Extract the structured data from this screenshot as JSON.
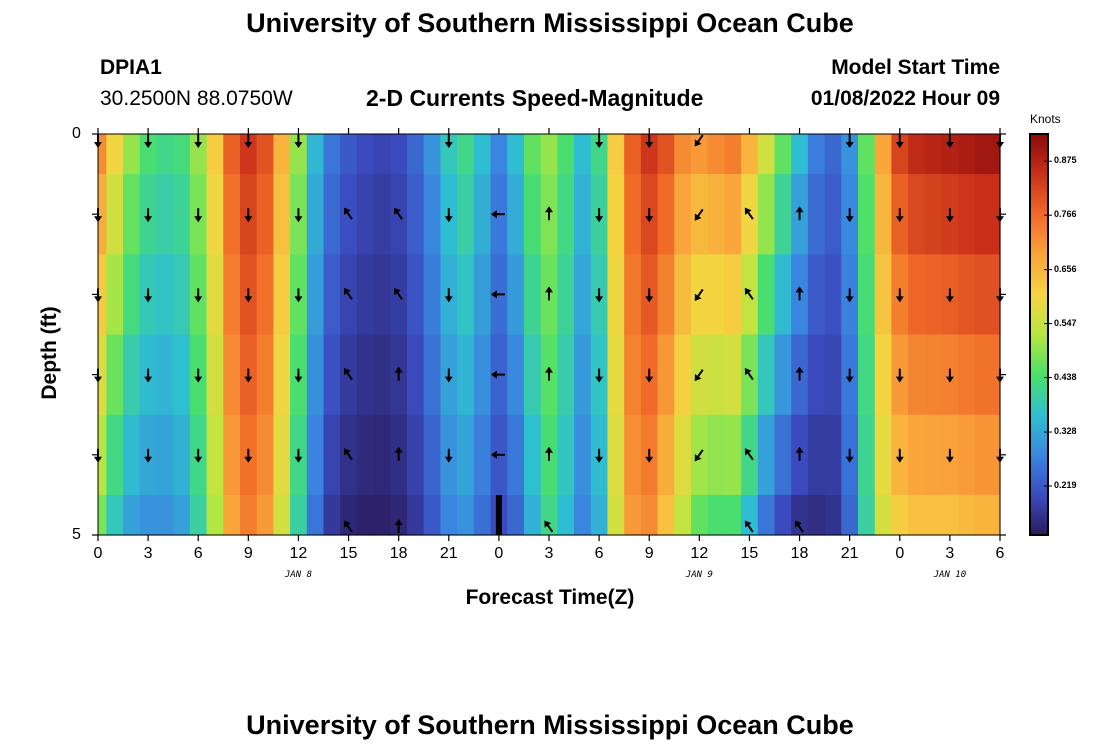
{
  "header": {
    "title": "University of Southern Mississippi Ocean Cube",
    "station_id": "DPIA1",
    "station_coords": "30.2500N  88.0750W",
    "chart_title": "2-D Currents Speed-Magnitude",
    "model_start_label": "Model Start Time",
    "model_start_value": "01/08/2022 Hour 09"
  },
  "footer": {
    "title": "University of Southern Mississippi Ocean Cube"
  },
  "colorbar": {
    "unit": "Knots",
    "ticks": [
      "0.875",
      "0.766",
      "0.656",
      "0.547",
      "0.438",
      "0.328",
      "0.219"
    ],
    "tick_values": [
      0.875,
      0.766,
      0.656,
      0.547,
      0.438,
      0.328,
      0.219
    ],
    "range": [
      0.12,
      0.93
    ],
    "colors": [
      "#2a1b5e",
      "#3b4cc0",
      "#3a86e0",
      "#2fc0d0",
      "#4ae06a",
      "#b8e640",
      "#f5d542",
      "#f9a33a",
      "#f06a28",
      "#c9301a",
      "#8a0a0a"
    ]
  },
  "chart_data": {
    "type": "heatmap",
    "title": "2-D Currents Speed-Magnitude",
    "xlabel": "Forecast Time(Z)",
    "ylabel": "Depth (ft)",
    "x_tick_labels": [
      "0",
      "3",
      "6",
      "9",
      "12",
      "15",
      "18",
      "21",
      "0",
      "3",
      "6",
      "9",
      "12",
      "15",
      "18",
      "21",
      "0",
      "3",
      "6"
    ],
    "x_hours": [
      0,
      54
    ],
    "date_labels": [
      {
        "label": "JAN 8",
        "hour": 12
      },
      {
        "label": "JAN 9",
        "hour": 36
      },
      {
        "label": "JAN 10",
        "hour": 51
      }
    ],
    "y_tick_labels": [
      "0",
      "5"
    ],
    "ylim": [
      0,
      5
    ],
    "depth_layers": 5,
    "speed_profile": {
      "hours": [
        0,
        1,
        2,
        3,
        4,
        5,
        6,
        7,
        8,
        9,
        10,
        11,
        12,
        13,
        14,
        15,
        16,
        17,
        18,
        19,
        20,
        21,
        22,
        23,
        24,
        25,
        26,
        27,
        28,
        29,
        30,
        31,
        32,
        33,
        34,
        35,
        36,
        37,
        38,
        39,
        40,
        41,
        42,
        43,
        44,
        45,
        46,
        47,
        48,
        49,
        50,
        51,
        52,
        53,
        54
      ],
      "surface": [
        0.72,
        0.6,
        0.5,
        0.44,
        0.42,
        0.43,
        0.5,
        0.62,
        0.78,
        0.84,
        0.8,
        0.66,
        0.5,
        0.35,
        0.26,
        0.22,
        0.2,
        0.19,
        0.2,
        0.24,
        0.3,
        0.38,
        0.42,
        0.36,
        0.28,
        0.36,
        0.46,
        0.5,
        0.44,
        0.36,
        0.42,
        0.62,
        0.78,
        0.84,
        0.8,
        0.72,
        0.7,
        0.72,
        0.74,
        0.66,
        0.56,
        0.46,
        0.36,
        0.27,
        0.24,
        0.3,
        0.46,
        0.68,
        0.82,
        0.86,
        0.87,
        0.88,
        0.89,
        0.9,
        0.9
      ],
      "bottom": [
        0.48,
        0.38,
        0.32,
        0.3,
        0.3,
        0.32,
        0.4,
        0.52,
        0.68,
        0.74,
        0.7,
        0.56,
        0.4,
        0.26,
        0.17,
        0.14,
        0.13,
        0.13,
        0.14,
        0.17,
        0.22,
        0.28,
        0.3,
        0.25,
        0.2,
        0.24,
        0.34,
        0.42,
        0.36,
        0.28,
        0.34,
        0.56,
        0.7,
        0.72,
        0.64,
        0.54,
        0.46,
        0.44,
        0.44,
        0.36,
        0.26,
        0.2,
        0.16,
        0.15,
        0.16,
        0.24,
        0.4,
        0.56,
        0.62,
        0.64,
        0.64,
        0.64,
        0.65,
        0.66,
        0.66
      ]
    },
    "arrows": {
      "hours": [
        0,
        3,
        6,
        9,
        12,
        15,
        18,
        21,
        24,
        27,
        30,
        33,
        36,
        39,
        42,
        45,
        48,
        51,
        54
      ],
      "rows": [
        0,
        1,
        2,
        3,
        4,
        5
      ],
      "directions": [
        [
          "S",
          "S",
          "S",
          "S",
          "S",
          "",
          "",
          "S",
          "",
          "",
          "S",
          "S",
          "SW",
          "",
          "",
          "S",
          "S",
          "S",
          "S"
        ],
        [
          "S",
          "S",
          "S",
          "S",
          "S",
          "NW",
          "NW",
          "S",
          "W",
          "N",
          "S",
          "S",
          "SW",
          "NW",
          "N",
          "S",
          "S",
          "S",
          "S"
        ],
        [
          "S",
          "S",
          "S",
          "S",
          "S",
          "NW",
          "NW",
          "S",
          "W",
          "N",
          "S",
          "S",
          "SW",
          "NW",
          "N",
          "S",
          "S",
          "S",
          "S"
        ],
        [
          "S",
          "S",
          "S",
          "S",
          "S",
          "NW",
          "N",
          "S",
          "W",
          "N",
          "S",
          "S",
          "SW",
          "NW",
          "N",
          "S",
          "S",
          "S",
          "S"
        ],
        [
          "S",
          "S",
          "S",
          "S",
          "S",
          "NW",
          "N",
          "S",
          "W",
          "N",
          "S",
          "S",
          "SW",
          "NW",
          "N",
          "S",
          "S",
          "S",
          "S"
        ],
        [
          "",
          "",
          "",
          "",
          "",
          "NW",
          "N",
          "",
          "",
          "NW",
          "",
          "",
          "",
          "NW",
          "NW",
          "",
          "",
          "",
          ""
        ]
      ]
    }
  }
}
